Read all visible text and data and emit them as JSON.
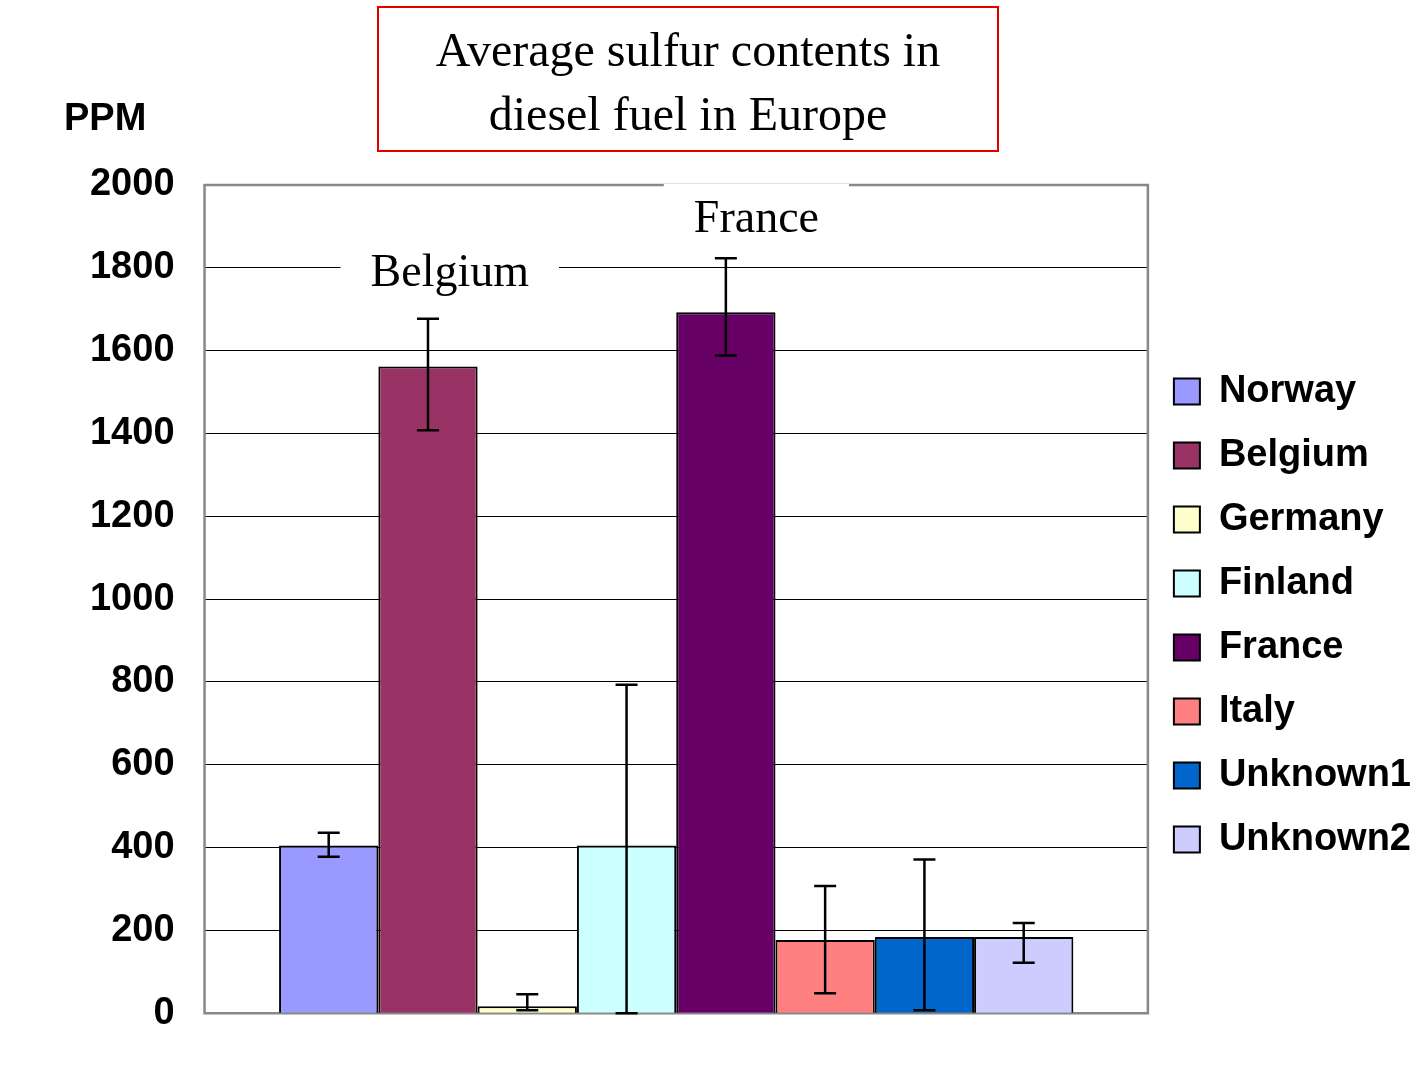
{
  "chart_data": {
    "type": "bar",
    "title": "Average sulfur contents in diesel fuel in Europe",
    "ylabel": "PPM",
    "categories": [
      null
    ],
    "series": [
      {
        "name": "Norway",
        "color": "#9999ff",
        "values": [
          405
        ],
        "errors": [
          [
            378,
            436
          ]
        ]
      },
      {
        "name": "Belgium",
        "color": "#993366",
        "values": [
          1562
        ],
        "errors": [
          [
            1408,
            1677
          ]
        ]
      },
      {
        "name": "Germany",
        "color": "#ffffcc",
        "values": [
          17
        ],
        "errors": [
          [
            7,
            46
          ]
        ]
      },
      {
        "name": "Finland",
        "color": "#ccffff",
        "values": [
          405
        ],
        "errors": [
          [
            0,
            793
          ]
        ]
      },
      {
        "name": "France",
        "color": "#660066",
        "values": [
          1693
        ],
        "errors": [
          [
            1588,
            1823
          ]
        ]
      },
      {
        "name": "Italy",
        "color": "#ff8080",
        "values": [
          177
        ],
        "errors": [
          [
            48,
            307
          ]
        ]
      },
      {
        "name": "Unknown1",
        "color": "#0066cc",
        "values": [
          184
        ],
        "errors": [
          [
            7,
            371
          ]
        ]
      },
      {
        "name": "Unknown2",
        "color": "#ccccff",
        "values": [
          184
        ],
        "errors": [
          [
            122,
            218
          ]
        ]
      }
    ],
    "annotations": [
      "Belgium",
      "France"
    ],
    "ylim": [
      0,
      2000
    ],
    "yticks": [
      0,
      200,
      400,
      600,
      800,
      1000,
      1200,
      1400,
      1600,
      1800,
      2000
    ],
    "grid": "y",
    "legend": "right"
  }
}
